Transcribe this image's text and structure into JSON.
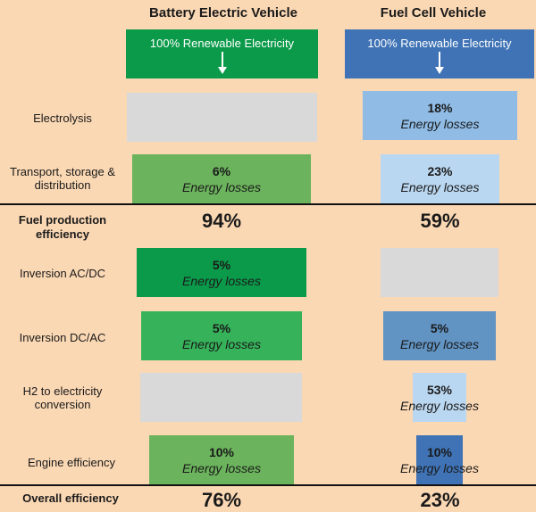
{
  "colors": {
    "background": "#fbd8b4",
    "bev_dark": "#0b9a4a",
    "bev_mid": "#36b25a",
    "bev_light": "#6bb35c",
    "fcv_dark": "#3f73b5",
    "fcv_mid": "#6193c3",
    "fcv_light": "#8fbbe5",
    "fcv_pale": "#bad7f1",
    "grey": "#d9d9d9"
  },
  "columns": {
    "bev": {
      "title": "Battery Electric Vehicle",
      "source": "100% Renewable Electricity",
      "source_icon": "arrow-down-icon"
    },
    "fcv": {
      "title": "Fuel Cell Vehicle",
      "source": "100% Renewable Electricity",
      "source_icon": "arrow-down-icon"
    }
  },
  "rows": {
    "electrolysis": {
      "label": "Electrolysis",
      "bev": {
        "present": false
      },
      "fcv": {
        "pct": "18%",
        "sub": "Energy losses",
        "loss_pct": 18
      }
    },
    "transport": {
      "label": "Transport, storage & distribution",
      "bev": {
        "pct": "6%",
        "sub": "Energy losses",
        "loss_pct": 6
      },
      "fcv": {
        "pct": "23%",
        "sub": "Energy losses",
        "loss_pct": 23
      }
    },
    "fuel_production": {
      "label": "Fuel production efficiency",
      "bev": "94%",
      "fcv": "59%"
    },
    "inversion_acdc": {
      "label": "Inversion AC/DC",
      "bev": {
        "pct": "5%",
        "sub": "Energy losses",
        "loss_pct": 5
      },
      "fcv": {
        "present": false
      }
    },
    "inversion_dcac": {
      "label": "Inversion DC/AC",
      "bev": {
        "pct": "5%",
        "sub": "Energy losses",
        "loss_pct": 5
      },
      "fcv": {
        "pct": "5%",
        "sub": "Energy losses",
        "loss_pct": 5
      }
    },
    "h2_conversion": {
      "label": "H2 to electricity conversion",
      "bev": {
        "present": false
      },
      "fcv": {
        "pct": "53%",
        "sub": "Energy losses",
        "loss_pct": 53
      }
    },
    "engine": {
      "label": "Engine efficiency",
      "bev": {
        "pct": "10%",
        "sub": "Energy losses",
        "loss_pct": 10
      },
      "fcv": {
        "pct": "10%",
        "sub": "Energy losses",
        "loss_pct": 10
      }
    },
    "overall": {
      "label": "Overall efficiency",
      "bev": "76%",
      "fcv": "23%"
    }
  }
}
